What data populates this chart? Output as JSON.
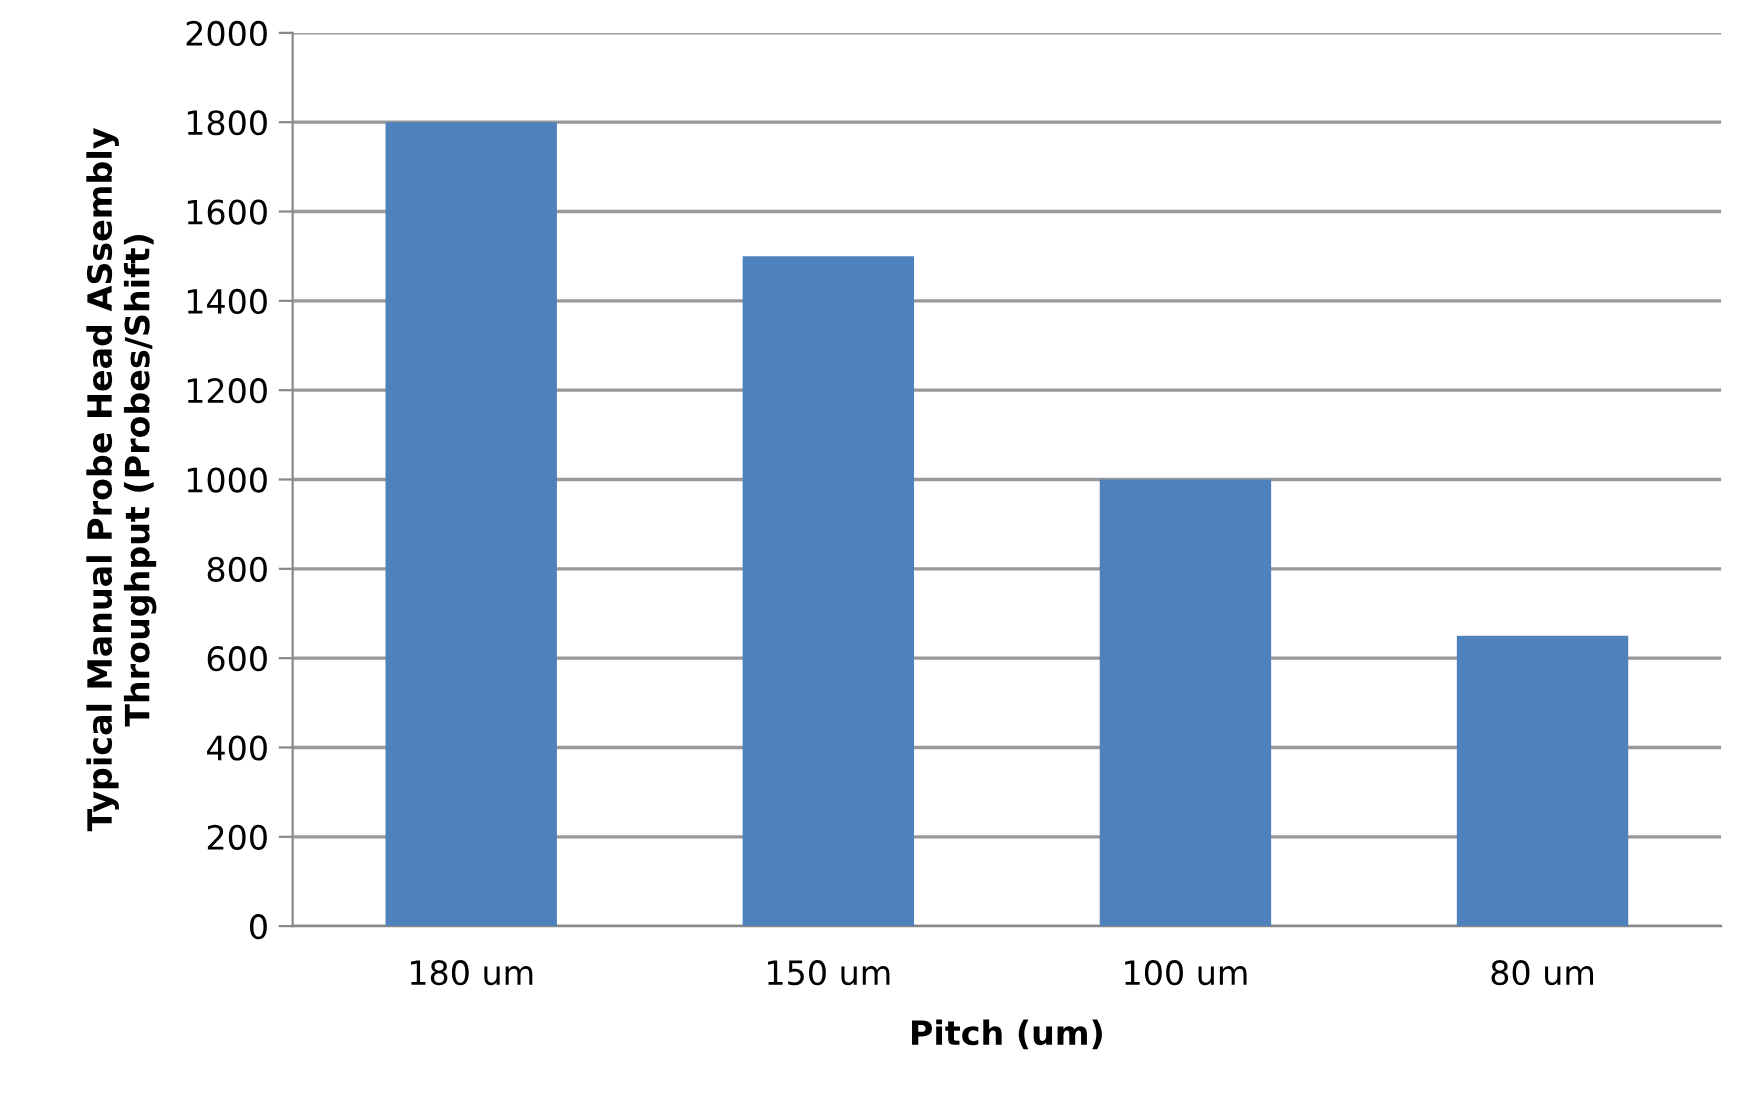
{
  "chart_data": {
    "type": "bar",
    "xlabel": "Pitch (um)",
    "ylabel": "Typical Manual Probe Head ASsembly\nThroughput (Probes/Shift)",
    "categories": [
      "180 um",
      "150 um",
      "100 um",
      "80 um"
    ],
    "values": [
      1800,
      1500,
      1000,
      650
    ],
    "color": "#4f81bd",
    "ylim": [
      0,
      2000
    ],
    "yticks": [
      0,
      200,
      400,
      600,
      800,
      1000,
      1200,
      1400,
      1600,
      1800,
      2000
    ],
    "grid": "y"
  }
}
